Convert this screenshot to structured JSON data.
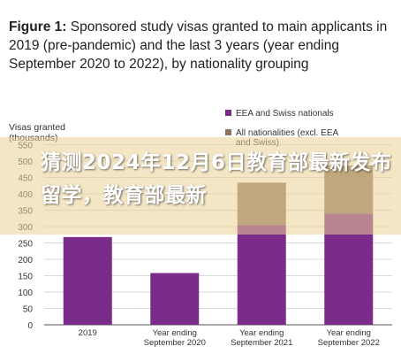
{
  "figure": {
    "title_bold": "Figure 1:",
    "title_rest": " Sponsored study visas granted to main applicants in 2019 (pre-pandemic) and the last 3 years (year ending September 2020 to 2022), by nationality grouping"
  },
  "overlay": {
    "text": "猜测2024年12月6日教育部最新发布留学，教育部最新"
  },
  "chart_data": {
    "type": "bar",
    "stacked": true,
    "ylabel_line1": "Visas granted",
    "ylabel_line2": "(thousands)",
    "ylim": [
      0,
      600
    ],
    "yticks": [
      0,
      50,
      100,
      150,
      200,
      250,
      300,
      350,
      400,
      450,
      500,
      550
    ],
    "categories": [
      [
        "2019"
      ],
      [
        "Year ending",
        "September 2020"
      ],
      [
        "Year ending",
        "September 2021"
      ],
      [
        "Year ending",
        "September 2022"
      ]
    ],
    "series": [
      {
        "name": "EEA and Swiss nationals",
        "color": "#7b2c8a",
        "values": [
          268,
          158,
          304,
          340
        ]
      },
      {
        "name": "All nationalities (excl. EEA and Swiss)",
        "color": "#8c7462",
        "values": [
          0,
          0,
          130,
          146
        ]
      }
    ],
    "legend_lines": [
      [
        "EEA and Swiss nationals"
      ],
      [
        "All nationalities (excl. EEA",
        "and Swiss)"
      ]
    ],
    "legend_position": "top-right",
    "grid": true
  }
}
